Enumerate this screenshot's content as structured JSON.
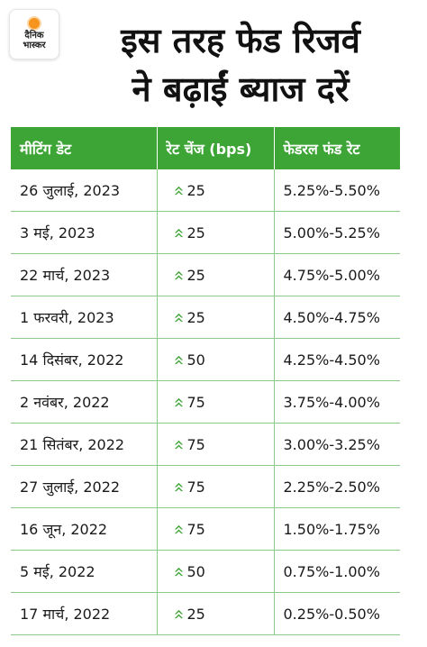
{
  "logo": {
    "line1": "दैनिक",
    "line2": "भास्कर"
  },
  "title": {
    "line1": "इस तरह फेड रिजर्व",
    "line2": "ने बढ़ाईं ब्याज दरें"
  },
  "table": {
    "headers": [
      "मीटिंग डेट",
      "रेट चेंज (bps)",
      "फेडरल फंड रेट"
    ],
    "rows": [
      {
        "date": "26 जुलाई, 2023",
        "change": "25",
        "rate": "5.25%-5.50%"
      },
      {
        "date": "3 मई, 2023",
        "change": "25",
        "rate": "5.00%-5.25%"
      },
      {
        "date": "22 मार्च, 2023",
        "change": "25",
        "rate": "4.75%-5.00%"
      },
      {
        "date": "1 फरवरी, 2023",
        "change": "25",
        "rate": "4.50%-4.75%"
      },
      {
        "date": "14 दिसंबर, 2022",
        "change": "50",
        "rate": "4.25%-4.50%"
      },
      {
        "date": "2 नवंबर, 2022",
        "change": "75",
        "rate": "3.75%-4.00%"
      },
      {
        "date": "21 सितंबर, 2022",
        "change": "75",
        "rate": "3.00%-3.25%"
      },
      {
        "date": "27 जुलाई, 2022",
        "change": "75",
        "rate": "2.25%-2.50%"
      },
      {
        "date": "16 जून, 2022",
        "change": "75",
        "rate": "1.50%-1.75%"
      },
      {
        "date": "5 मई, 2022",
        "change": "50",
        "rate": "0.75%-1.00%"
      },
      {
        "date": "17 मार्च, 2022",
        "change": "25",
        "rate": "0.25%-0.50%"
      }
    ]
  },
  "icons": {
    "row_arrow": "double-chevron-up-icon"
  },
  "colors": {
    "header_bg": "#3da535",
    "arrow": "#3da535",
    "grid": "#8cc98a",
    "logo_sun": "#f7941d"
  }
}
